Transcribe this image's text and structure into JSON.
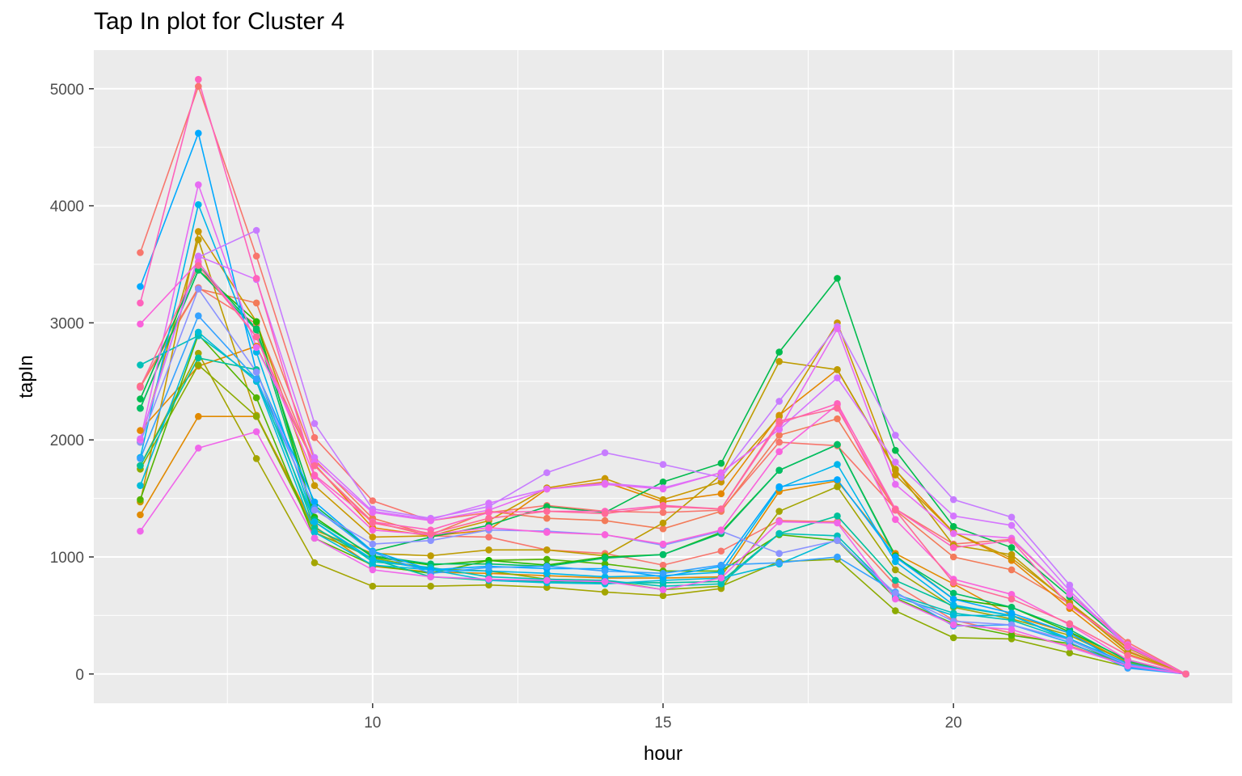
{
  "chart_data": {
    "type": "line",
    "title": "Tap In plot for Cluster 4",
    "xlabel": "hour",
    "ylabel": "tapIn",
    "xlim": [
      5.2,
      24.8
    ],
    "ylim": [
      -250,
      5330
    ],
    "x_ticks": [
      10,
      15,
      20
    ],
    "y_ticks": [
      0,
      1000,
      2000,
      3000,
      4000,
      5000
    ],
    "grid": true,
    "legend": "none",
    "x": [
      6,
      7,
      8,
      9,
      10,
      11,
      12,
      13,
      14,
      15,
      16,
      17,
      18,
      19,
      20,
      21,
      22,
      23,
      24
    ],
    "series": [
      {
        "color": "#F8766D",
        "values": [
          3600,
          5020,
          3570,
          2020,
          1480,
          1310,
          1380,
          1440,
          1390,
          1380,
          1400,
          1980,
          1950,
          1410,
          1110,
          1150,
          680,
          270,
          0
        ]
      },
      {
        "color": "#F8766D",
        "values": [
          2460,
          3300,
          2990,
          1780,
          1300,
          1180,
          1170,
          1060,
          1030,
          930,
          1050,
          1310,
          1300,
          760,
          460,
          350,
          240,
          80,
          0
        ]
      },
      {
        "color": "#F37B59",
        "values": [
          2450,
          3290,
          3170,
          1830,
          1330,
          1190,
          1390,
          1330,
          1310,
          1240,
          1390,
          2040,
          2180,
          1400,
          1000,
          890,
          600,
          200,
          0
        ]
      },
      {
        "color": "#E58700",
        "values": [
          2080,
          2630,
          2800,
          1790,
          1250,
          1180,
          1230,
          1580,
          1640,
          1470,
          1540,
          2210,
          2600,
          1740,
          1210,
          970,
          560,
          170,
          0
        ]
      },
      {
        "color": "#E18A00",
        "values": [
          1360,
          2200,
          2200,
          1260,
          920,
          870,
          860,
          840,
          820,
          820,
          830,
          1560,
          1650,
          1030,
          770,
          500,
          350,
          100,
          0
        ]
      },
      {
        "color": "#C99800",
        "values": [
          1470,
          3780,
          3010,
          1610,
          1170,
          1180,
          1310,
          1590,
          1670,
          1490,
          1640,
          2200,
          3000,
          1700,
          1210,
          990,
          610,
          220,
          0
        ]
      },
      {
        "color": "#BE9C00",
        "values": [
          1980,
          3710,
          2210,
          1230,
          1030,
          1010,
          1060,
          1060,
          1010,
          1290,
          1700,
          2670,
          2600,
          1750,
          1100,
          1020,
          600,
          190,
          0
        ]
      },
      {
        "color": "#A3A500",
        "values": [
          1780,
          2740,
          1840,
          950,
          750,
          750,
          760,
          740,
          700,
          670,
          730,
          1390,
          1600,
          890,
          570,
          470,
          330,
          100,
          0
        ]
      },
      {
        "color": "#8CAB00",
        "values": [
          1750,
          2640,
          2200,
          1210,
          990,
          900,
          880,
          810,
          800,
          720,
          750,
          960,
          980,
          540,
          310,
          300,
          180,
          60,
          0
        ]
      },
      {
        "color": "#53B400",
        "values": [
          1490,
          2900,
          2360,
          1160,
          930,
          860,
          970,
          980,
          940,
          880,
          880,
          1190,
          1140,
          650,
          430,
          330,
          260,
          80,
          0
        ]
      },
      {
        "color": "#24B700",
        "values": [
          2270,
          3450,
          3010,
          1340,
          1000,
          930,
          970,
          930,
          1000,
          1020,
          1210,
          1740,
          1960,
          1010,
          640,
          570,
          360,
          120,
          0
        ]
      },
      {
        "color": "#00BB4E",
        "values": [
          2350,
          3490,
          2950,
          1440,
          1050,
          1170,
          1270,
          1430,
          1380,
          1640,
          1800,
          2750,
          3380,
          1910,
          1260,
          1080,
          660,
          240,
          0
        ]
      },
      {
        "color": "#00BE67",
        "values": [
          2270,
          3450,
          2940,
          1320,
          1010,
          940,
          940,
          920,
          990,
          1020,
          1200,
          1740,
          1960,
          1000,
          690,
          570,
          380,
          110,
          0
        ]
      },
      {
        "color": "#00C19A",
        "values": [
          1780,
          2700,
          2600,
          1250,
          980,
          830,
          800,
          790,
          780,
          780,
          790,
          1200,
          1350,
          800,
          580,
          500,
          300,
          80,
          0
        ]
      },
      {
        "color": "#00C0B8",
        "values": [
          2640,
          2890,
          2520,
          1300,
          960,
          910,
          830,
          810,
          800,
          750,
          770,
          1200,
          1180,
          680,
          520,
          460,
          290,
          80,
          0
        ]
      },
      {
        "color": "#00BCD8",
        "values": [
          1610,
          2920,
          2500,
          1210,
          930,
          890,
          800,
          780,
          770,
          800,
          820,
          940,
          1150,
          660,
          500,
          500,
          290,
          70,
          0
        ]
      },
      {
        "color": "#00B6EB",
        "values": [
          1850,
          4010,
          2750,
          1300,
          980,
          890,
          880,
          860,
          830,
          840,
          870,
          1590,
          1790,
          960,
          590,
          500,
          300,
          90,
          0
        ]
      },
      {
        "color": "#00A9FF",
        "values": [
          3310,
          4620,
          2580,
          1470,
          1050,
          890,
          920,
          900,
          900,
          830,
          920,
          1600,
          1660,
          1000,
          640,
          520,
          350,
          60,
          0
        ]
      },
      {
        "color": "#35A2FF",
        "values": [
          1840,
          3060,
          2520,
          1420,
          1040,
          860,
          910,
          920,
          880,
          860,
          930,
          950,
          1000,
          700,
          410,
          420,
          270,
          50,
          0
        ]
      },
      {
        "color": "#8B93FF",
        "values": [
          1980,
          3290,
          2580,
          1400,
          1110,
          1140,
          1230,
          1220,
          1190,
          1100,
          1220,
          1030,
          1140,
          690,
          450,
          420,
          290,
          80,
          0
        ]
      },
      {
        "color": "#C77CFF",
        "values": [
          2000,
          3560,
          3790,
          2140,
          1410,
          1330,
          1430,
          1720,
          1890,
          1790,
          1680,
          2330,
          2970,
          2040,
          1490,
          1340,
          760,
          240,
          0
        ]
      },
      {
        "color": "#D575FE",
        "values": [
          2010,
          3570,
          3370,
          1850,
          1390,
          1320,
          1460,
          1580,
          1630,
          1590,
          1720,
          2090,
          2530,
          1810,
          1350,
          1270,
          710,
          230,
          0
        ]
      },
      {
        "color": "#E76BF3",
        "values": [
          2000,
          4180,
          2790,
          1810,
          1380,
          1310,
          1400,
          1580,
          1620,
          1580,
          1720,
          2090,
          2950,
          1620,
          1200,
          1160,
          680,
          250,
          0
        ]
      },
      {
        "color": "#F066EA",
        "values": [
          1220,
          1930,
          2070,
          1160,
          890,
          830,
          810,
          800,
          790,
          720,
          820,
          1300,
          1290,
          640,
          420,
          380,
          230,
          70,
          0
        ]
      },
      {
        "color": "#FA62DB",
        "values": [
          2990,
          3520,
          2880,
          1690,
          1230,
          1190,
          1250,
          1210,
          1190,
          1110,
          1230,
          1900,
          2300,
          1320,
          810,
          680,
          420,
          120,
          0
        ]
      },
      {
        "color": "#FF62BC",
        "values": [
          3170,
          5080,
          3380,
          1700,
          1300,
          1230,
          1380,
          1390,
          1390,
          1440,
          1410,
          2140,
          2310,
          1410,
          1080,
          1140,
          580,
          240,
          0
        ]
      },
      {
        "color": "#FF6A98",
        "values": [
          2450,
          3490,
          2880,
          1780,
          1290,
          1200,
          1330,
          1390,
          1370,
          1430,
          1410,
          2160,
          2270,
          1400,
          780,
          640,
          430,
          160,
          0
        ]
      }
    ]
  }
}
